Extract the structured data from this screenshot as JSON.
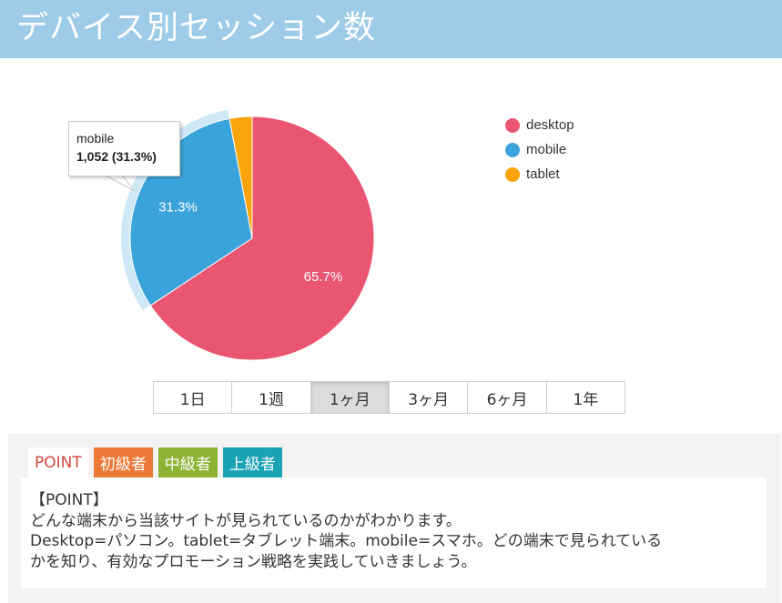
{
  "header": {
    "title": "デバイス別セッション数"
  },
  "chart_data": {
    "type": "pie",
    "categories": [
      "desktop",
      "mobile",
      "tablet"
    ],
    "values": [
      65.7,
      31.3,
      3.0
    ],
    "data_labels": [
      "65.7%",
      "31.3%",
      ""
    ],
    "colors": [
      "#ea5571",
      "#3aa3da",
      "#f9a40a"
    ],
    "highlighted": "mobile",
    "legend_position": "top-right",
    "tooltip": {
      "name": "mobile",
      "value": "1,052 (31.3%)"
    }
  },
  "legend": {
    "items": [
      {
        "label": "desktop",
        "color": "#ea5571"
      },
      {
        "label": "mobile",
        "color": "#3aa3da"
      },
      {
        "label": "tablet",
        "color": "#f9a40a"
      }
    ]
  },
  "range_selector": {
    "buttons": [
      "1日",
      "1週",
      "1ヶ月",
      "3ヶ月",
      "6ヶ月",
      "1年"
    ],
    "active": "1ヶ月"
  },
  "point": {
    "tabs": {
      "point": "POINT",
      "beginner": "初級者",
      "intermediate": "中級者",
      "advanced": "上級者"
    },
    "lines": [
      "【POINT】",
      "どんな端末から当該サイトが見られているのかがわかります。",
      "Desktop=パソコン。tablet=タブレット端末。mobile=スマホ。どの端末で見られている",
      "かを知り、有効なプロモーション戦略を実践していきましょう。"
    ]
  }
}
